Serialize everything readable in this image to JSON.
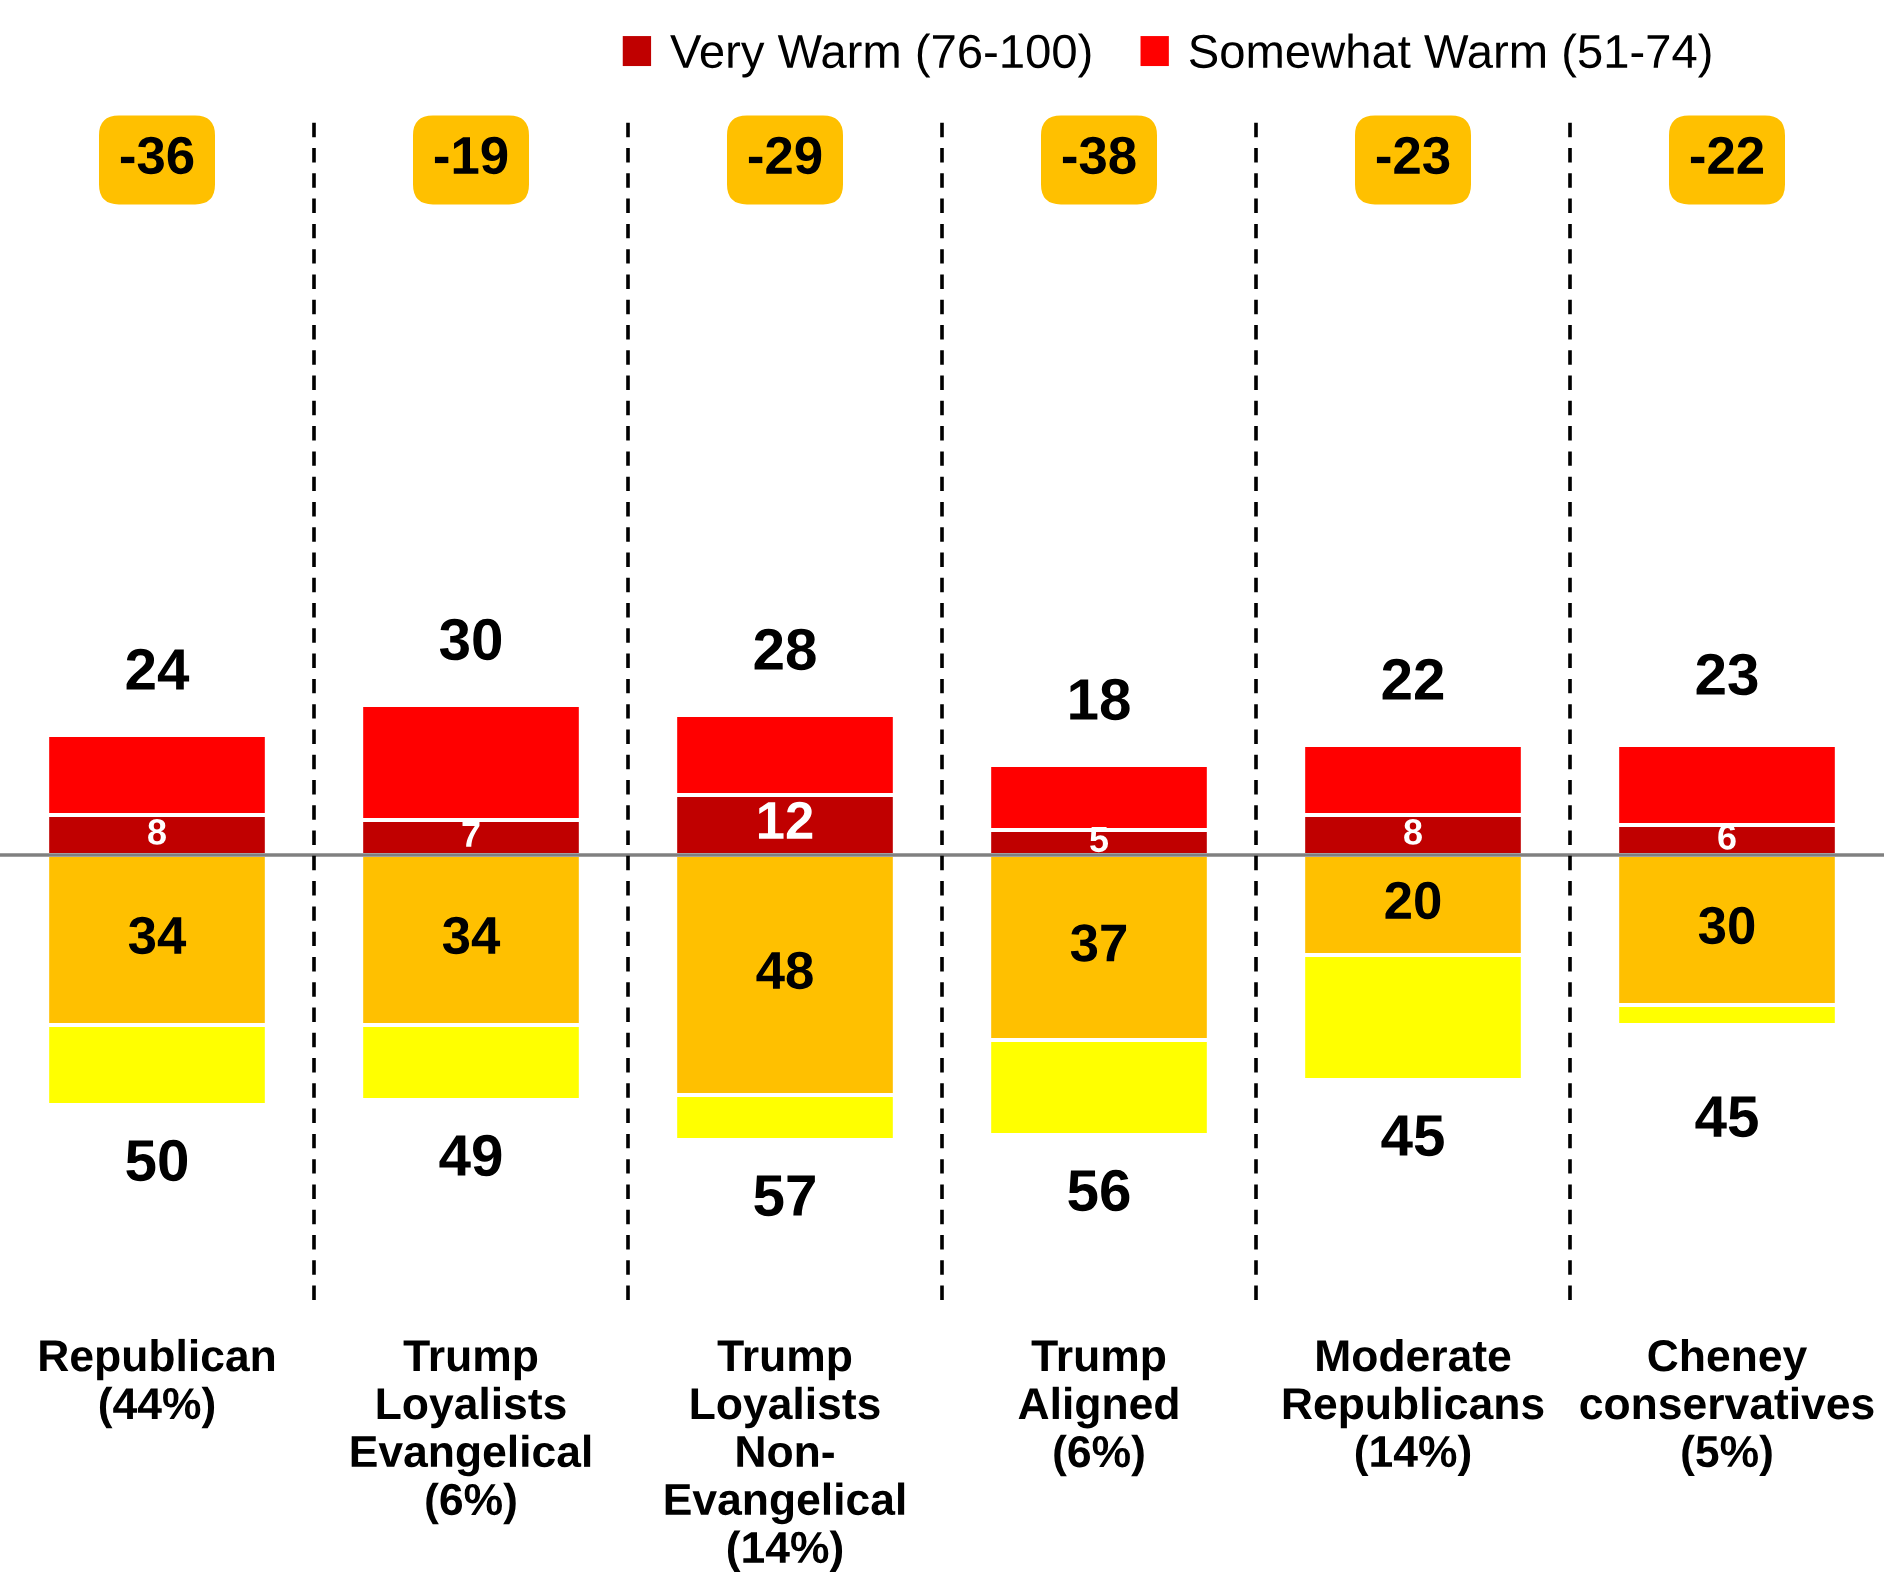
{
  "chart_data": {
    "type": "bar",
    "stacked": true,
    "categories": [
      "Republican\n(44%)",
      "Trump\nLoyalists\nEvangelical\n(6%)",
      "Trump\nLoyalists\nNon-\nEvangelical\n(14%)",
      "Trump\nAligned\n(6%)",
      "Moderate\nRepublicans\n(14%)",
      "Cheney\nconservatives\n(5%)"
    ],
    "series": [
      {
        "name": "Very Warm (76-100)",
        "color": "#c00000",
        "values": [
          8,
          7,
          12,
          5,
          8,
          6
        ],
        "value_labels": [
          "8",
          "7",
          "12",
          "5",
          "8",
          "6"
        ]
      },
      {
        "name": "Somewhat Warm (51-74)",
        "color": "#ff0000",
        "values": [
          16,
          23,
          16,
          13,
          14,
          16
        ]
      },
      {
        "color": "#ffc000",
        "values": [
          -34,
          -34,
          -48,
          -37,
          -20,
          -30
        ]
      },
      {
        "color": "#ffff00",
        "values": [
          -16,
          -15,
          -9,
          -19,
          -25,
          -4
        ]
      }
    ],
    "annotations": [
      {
        "text": "34",
        "x": "Republican\n(44%)",
        "y": -34
      },
      {
        "text": "34",
        "x": "Trump\nLoyalists\nEvangelical\n(6%)",
        "y": -34
      },
      {
        "text": "48",
        "x": "Trump\nLoyalists\nNon-\nEvangelical\n(14%)",
        "y": -48
      },
      {
        "text": "37",
        "x": "Trump\nAligned\n(6%)",
        "y": -37
      },
      {
        "text": "20",
        "x": "Moderate\nRepublicans\n(14%)",
        "y": -20
      },
      {
        "text": "30",
        "x": "Cheney\nconservatives\n(5%)",
        "y": -30
      },
      {
        "text": "24",
        "x": "Republican\n(44%)",
        "y": 24
      },
      {
        "text": "30",
        "x": "Trump\nLoyalists\nEvangelical\n(6%)",
        "y": 30
      },
      {
        "text": "28",
        "x": "Trump\nLoyalists\nNon-\nEvangelical\n(14%)",
        "y": 28
      },
      {
        "text": "18",
        "x": "Trump\nAligned\n(6%)",
        "y": 18
      },
      {
        "text": "22",
        "x": "Moderate\nRepublicans\n(14%)",
        "y": 22
      },
      {
        "text": "23",
        "x": "Cheney\nconservatives\n(5%)",
        "y": 23
      },
      {
        "text": "50",
        "x": "Republican\n(44%)",
        "y": -50
      },
      {
        "text": "49",
        "x": "Trump\nLoyalists\nEvangelical\n(6%)",
        "y": -49
      },
      {
        "text": "57",
        "x": "Trump\nLoyalists\nNon-\nEvangelical\n(14%)",
        "y": -57
      },
      {
        "text": "56",
        "x": "Trump\nAligned\n(6%)",
        "y": -56
      },
      {
        "text": "45",
        "x": "Moderate\nRepublicans\n(14%)",
        "y": -45
      },
      {
        "text": "45",
        "x": "Cheney\nconservatives\n(5%)",
        "y": -34
      },
      "-36",
      "-19",
      "-29",
      "-38",
      "-23",
      "-22"
    ],
    "ylim": [
      -89,
      147
    ],
    "tick_labels": "x",
    "grid": "x",
    "legend": "top"
  }
}
